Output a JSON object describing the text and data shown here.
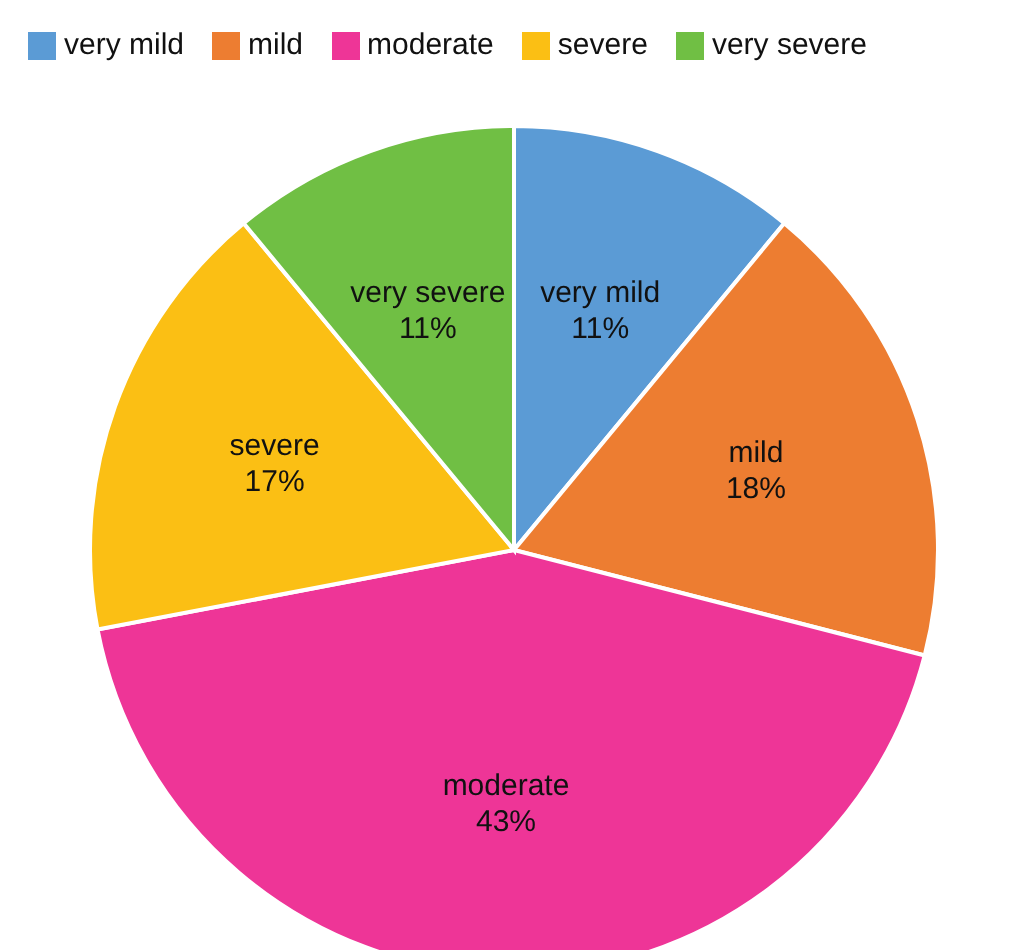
{
  "chart_data": {
    "type": "pie",
    "categories": [
      "very mild",
      "mild",
      "moderate",
      "severe",
      "very severe"
    ],
    "values": [
      11,
      18,
      43,
      17,
      11
    ],
    "value_labels": [
      "11%",
      "18%",
      "43%",
      "17%",
      "11%"
    ],
    "colors": [
      "#5b9bd5",
      "#ed7d31",
      "#ee3597",
      "#fbbf14",
      "#70bf44"
    ],
    "legend": "top left"
  }
}
